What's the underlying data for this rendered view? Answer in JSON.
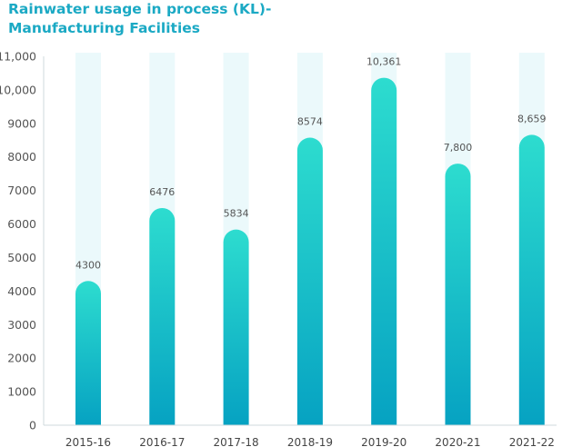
{
  "chart_data": {
    "type": "bar",
    "title_lines": [
      "Rainwater usage in process (KL)-",
      "Manufacturing Facilities"
    ],
    "categories": [
      "2015-16",
      "2016-17",
      "2017-18",
      "2018-19",
      "2019-20",
      "2020-21",
      "2021-22"
    ],
    "values": [
      4300,
      6476,
      5834,
      8574,
      10361,
      7800,
      8659
    ],
    "value_labels": [
      "4300",
      "6476",
      "5834",
      "8574",
      "10,361",
      "7,800",
      "8,659"
    ],
    "y_ticks": [
      0,
      1000,
      2000,
      3000,
      4000,
      5000,
      6000,
      7000,
      8000,
      9000,
      10000,
      11000
    ],
    "y_tick_labels": [
      "0",
      "1000",
      "2000",
      "3000",
      "4000",
      "5000",
      "6000",
      "7000",
      "8000",
      "9000",
      "10,000",
      "11,000"
    ],
    "ylim": [
      0,
      11000
    ],
    "xlabel": "",
    "ylabel": "",
    "grid": false,
    "colors": {
      "bar_top": "#2ddccf",
      "bar_bottom": "#06a2c2",
      "bar_background": "#ebf9fb",
      "axis": "#cfd8dc",
      "title": "#1ba9c4"
    }
  }
}
